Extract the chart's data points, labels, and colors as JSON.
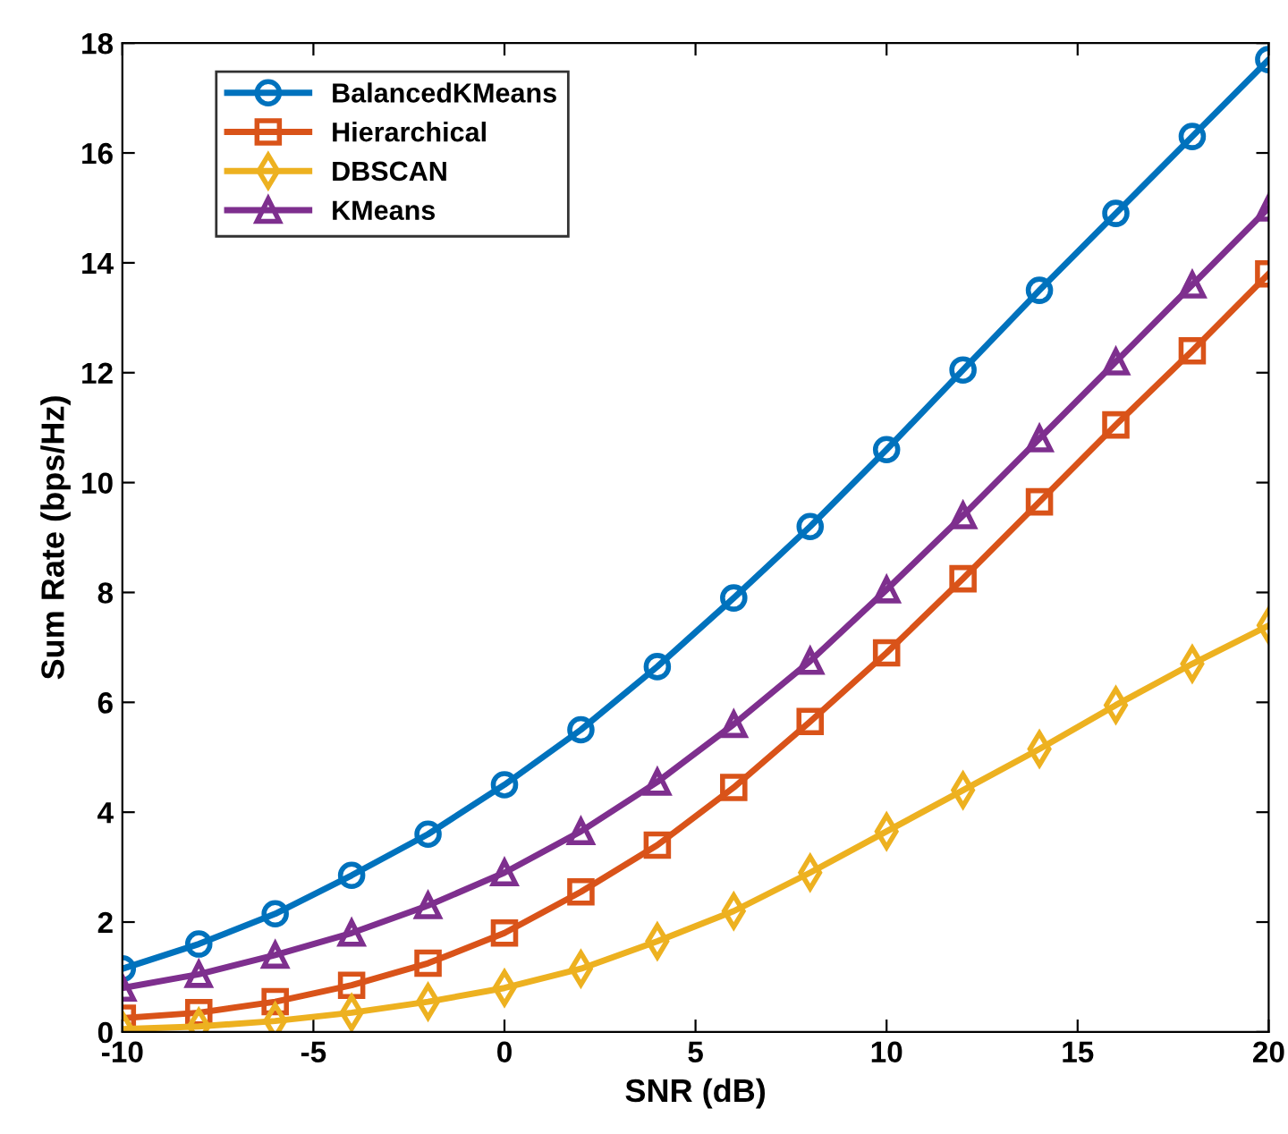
{
  "chart_data": {
    "type": "line",
    "xlabel": "SNR (dB)",
    "ylabel": "Sum Rate (bps/Hz)",
    "x": [
      -10,
      -8,
      -6,
      -4,
      -2,
      0,
      2,
      4,
      6,
      8,
      10,
      12,
      14,
      16,
      18,
      20
    ],
    "series": [
      {
        "name": "BalancedKMeans",
        "color": "#0072bd",
        "marker": "circle",
        "values": [
          1.15,
          1.6,
          2.15,
          2.85,
          3.6,
          4.5,
          5.5,
          6.65,
          7.9,
          9.2,
          10.6,
          12.05,
          13.5,
          14.9,
          16.3,
          17.7
        ]
      },
      {
        "name": "Hierarchical",
        "color": "#d95319",
        "marker": "square",
        "values": [
          0.25,
          0.35,
          0.55,
          0.85,
          1.25,
          1.8,
          2.55,
          3.4,
          4.45,
          5.65,
          6.9,
          8.25,
          9.65,
          11.05,
          12.4,
          13.8
        ]
      },
      {
        "name": "DBSCAN",
        "color": "#edb120",
        "marker": "diamond",
        "values": [
          0.05,
          0.1,
          0.2,
          0.35,
          0.55,
          0.8,
          1.15,
          1.65,
          2.2,
          2.9,
          3.65,
          4.4,
          5.15,
          5.95,
          6.7,
          7.4
        ]
      },
      {
        "name": "KMeans",
        "color": "#7e2f8e",
        "marker": "triangle",
        "values": [
          0.8,
          1.05,
          1.4,
          1.8,
          2.3,
          2.9,
          3.65,
          4.55,
          5.6,
          6.75,
          8.05,
          9.4,
          10.8,
          12.2,
          13.6,
          15.0
        ]
      }
    ],
    "xlim": [
      -10,
      20
    ],
    "xticks": [
      -10,
      -5,
      0,
      5,
      10,
      15,
      20
    ],
    "ylim": [
      0,
      18
    ],
    "yticks": [
      0,
      2,
      4,
      6,
      8,
      10,
      12,
      14,
      16,
      18
    ],
    "grid": false,
    "legend": "top left",
    "line_style": "solid"
  }
}
